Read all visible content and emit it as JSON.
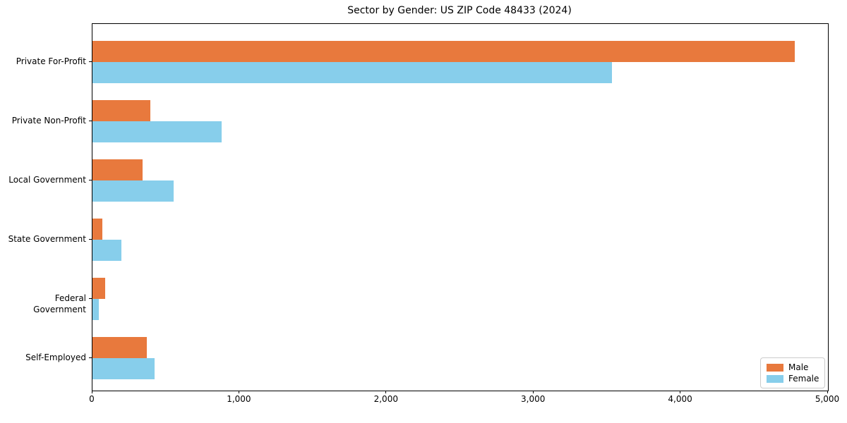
{
  "chart_data": {
    "type": "bar",
    "orientation": "horizontal",
    "title": "Sector by Gender: US ZIP Code 48433 (2024)",
    "categories": [
      "Private For-Profit",
      "Private Non-Profit",
      "Local Government",
      "State Government",
      "Federal Government",
      "Self-Employed"
    ],
    "series": [
      {
        "name": "Male",
        "color": "#E8793D",
        "values": [
          4775,
          395,
          340,
          65,
          85,
          370
        ]
      },
      {
        "name": "Female",
        "color": "#87CEEB",
        "values": [
          3530,
          880,
          550,
          195,
          45,
          420
        ]
      }
    ],
    "xlabel": "",
    "ylabel": "",
    "xlim": [
      0,
      5000
    ],
    "xticks": [
      0,
      1000,
      2000,
      3000,
      4000,
      5000
    ],
    "xtick_labels": [
      "0",
      "1,000",
      "2,000",
      "3,000",
      "4,000",
      "5,000"
    ],
    "grid": false,
    "legend": {
      "position": "lower right",
      "entries": [
        "Male",
        "Female"
      ]
    }
  }
}
